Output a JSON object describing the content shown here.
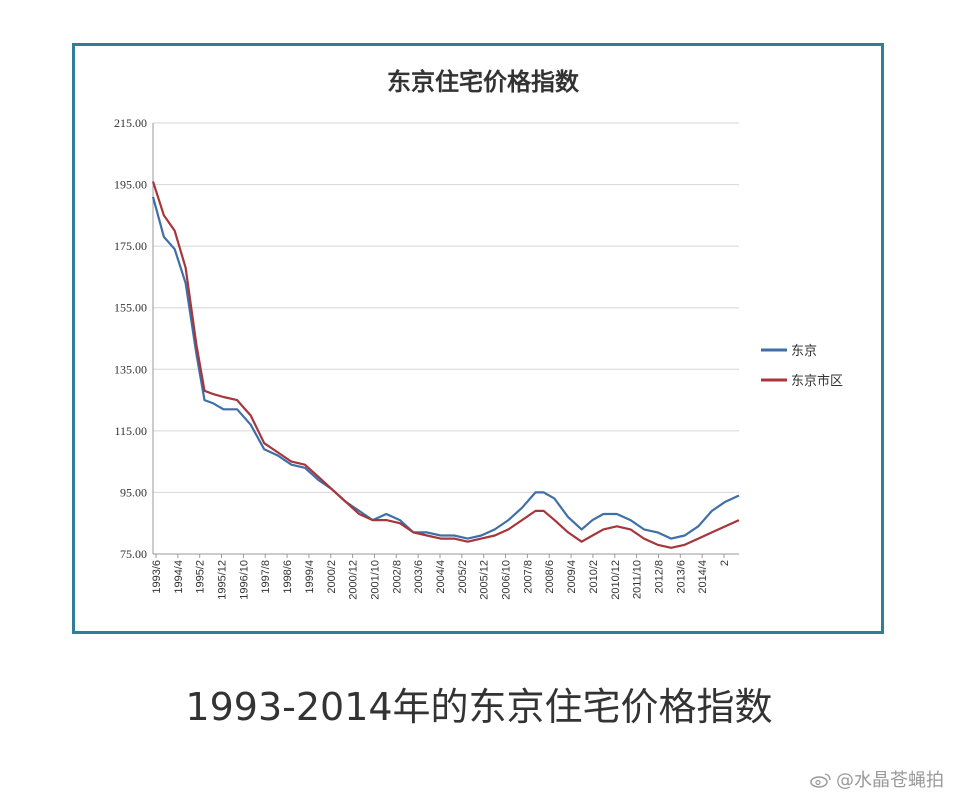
{
  "caption": "1993-2014年的东京住宅价格指数",
  "watermark": "@水晶苍蝇拍",
  "colors": {
    "frame": "#2f7f95",
    "tokyo": "#3f6fa8",
    "tokyo_city": "#a6363c",
    "grid": "#d6d6d6"
  },
  "chart_data": {
    "type": "line",
    "title": "东京住宅价格指数",
    "xlabel": "",
    "ylabel": "",
    "ylim": [
      75,
      215
    ],
    "yticks": [
      "215.00",
      "195.00",
      "175.00",
      "155.00",
      "135.00",
      "115.00",
      "95.00",
      "75.00"
    ],
    "grid": true,
    "legend_position": "right",
    "x_tick_labels": [
      "1993/6",
      "1994/4",
      "1995/2",
      "1995/12",
      "1996/10",
      "1997/8",
      "1998/6",
      "1999/4",
      "2000/2",
      "2000/12",
      "2001/10",
      "2002/8",
      "2003/6",
      "2004/4",
      "2005/2",
      "2005/12",
      "2006/10",
      "2007/8",
      "2008/6",
      "2009/4",
      "2010/2",
      "2010/12",
      "2011/10",
      "2012/8",
      "2013/6",
      "2014/4",
      "2"
    ],
    "x": [
      1993.4,
      1993.8,
      1994.2,
      1994.6,
      1995.0,
      1995.3,
      1995.6,
      1996.0,
      1996.5,
      1997.0,
      1997.5,
      1998.0,
      1998.5,
      1999.0,
      1999.5,
      2000.0,
      2000.5,
      2001.0,
      2001.5,
      2002.0,
      2002.5,
      2003.0,
      2003.5,
      2004.0,
      2004.5,
      2005.0,
      2005.5,
      2006.0,
      2006.5,
      2007.0,
      2007.5,
      2007.8,
      2008.2,
      2008.7,
      2009.2,
      2009.6,
      2010.0,
      2010.5,
      2011.0,
      2011.5,
      2012.0,
      2012.5,
      2013.0,
      2013.5,
      2014.0,
      2014.5,
      2015.0
    ],
    "series": [
      {
        "name": "东京",
        "color": "#3f6fa8",
        "values": [
          191,
          178,
          174,
          163,
          140,
          125,
          124,
          122,
          122,
          117,
          109,
          107,
          104,
          103,
          99,
          96,
          92,
          89,
          86,
          88,
          86,
          82,
          82,
          81,
          81,
          80,
          81,
          83,
          86,
          90,
          95,
          95,
          93,
          87,
          83,
          86,
          88,
          88,
          86,
          83,
          82,
          80,
          81,
          84,
          89,
          92,
          94
        ]
      },
      {
        "name": "东京市区",
        "color": "#a6363c",
        "values": [
          196,
          185,
          180,
          168,
          143,
          128,
          127,
          126,
          125,
          120,
          111,
          108,
          105,
          104,
          100,
          96,
          92,
          88,
          86,
          86,
          85,
          82,
          81,
          80,
          80,
          79,
          80,
          81,
          83,
          86,
          89,
          89,
          86,
          82,
          79,
          81,
          83,
          84,
          83,
          80,
          78,
          77,
          78,
          80,
          82,
          84,
          86
        ]
      }
    ]
  }
}
